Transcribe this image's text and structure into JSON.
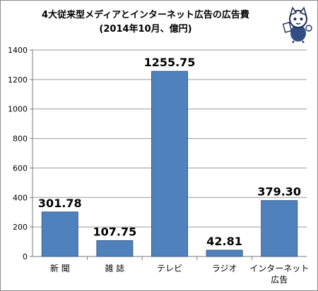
{
  "chart_data": {
    "type": "bar",
    "title": "4大従来型メディアとインターネット広告の広告費",
    "subtitle": "(2014年10月、億円)",
    "categories": [
      "新 聞",
      "雑 誌",
      "テレビ",
      "ラジオ",
      "インターネット\n広告"
    ],
    "values": [
      301.78,
      107.75,
      1255.75,
      42.81,
      379.3
    ],
    "value_labels": [
      "301.78",
      "107.75",
      "1255.75",
      "42.81",
      "379.30"
    ],
    "y_ticks": [
      "0",
      "200",
      "400",
      "600",
      "800",
      "1000",
      "1200",
      "1400"
    ],
    "ylim": [
      0,
      1400
    ],
    "grid": true,
    "bar_color": "#4f81bd",
    "bar_edge_color": "#385d8a"
  }
}
